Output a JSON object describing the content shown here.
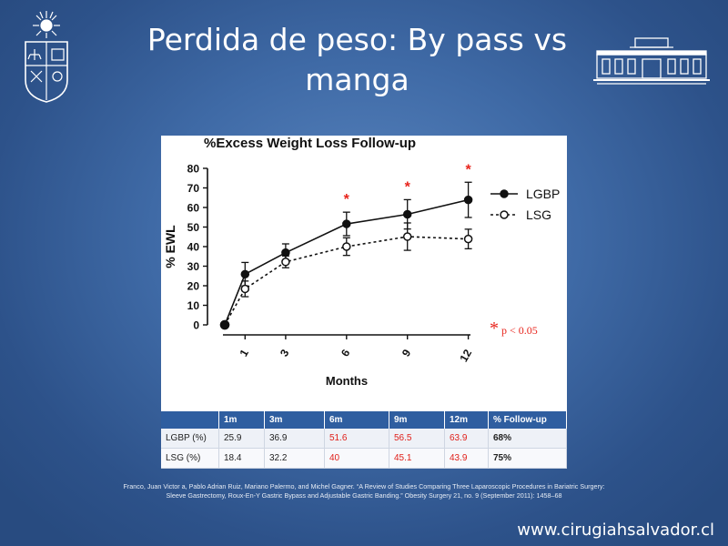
{
  "slide": {
    "title_line1": "Perdida de peso: By pass vs",
    "title_line2": "manga",
    "citation_line1": "Franco, Juan Victor a, Pablo Adrian Ruiz, Mariano Palermo, and Michel Gagner. “A Review of Studies Comparing Three Laparoscopic Procedures in Bariatric Surgery:",
    "citation_line2": "Sleeve Gastrectomy, Roux-En-Y Gastric Bypass and Adjustable Gastric Banding.” Obesity Surgery 21, no. 9 (September 2011): 1458–68",
    "website": "www.cirugiahsalvador.cl"
  },
  "chart_data": {
    "type": "line",
    "title": "%Excess Weight Loss Follow-up",
    "xlabel": "Months",
    "ylabel": "% EWL",
    "ylim": [
      0,
      80
    ],
    "yticks": [
      0,
      10,
      20,
      30,
      40,
      50,
      60,
      70,
      80
    ],
    "xticks": [
      1,
      3,
      6,
      9,
      12
    ],
    "significance_label": "p < 0.05",
    "significance_marker": "*",
    "significance_at": [
      6,
      9,
      12
    ],
    "legend_position": "right",
    "series": [
      {
        "name": "LGBP",
        "style": "solid-filled",
        "x": [
          0,
          1,
          3,
          6,
          9,
          12
        ],
        "y": [
          0,
          25.9,
          36.9,
          51.6,
          56.5,
          63.9
        ],
        "err": [
          0,
          6,
          4.5,
          6,
          7.5,
          9
        ]
      },
      {
        "name": "LSG",
        "style": "dashed-open",
        "x": [
          0,
          1,
          3,
          6,
          9,
          12
        ],
        "y": [
          0,
          18.4,
          32.2,
          40,
          45.1,
          43.9
        ],
        "err": [
          0,
          4,
          3,
          4.5,
          7,
          5
        ]
      }
    ],
    "colors": {
      "line": "#111111",
      "significance": "#e8241c"
    }
  },
  "table": {
    "headers": [
      "",
      "1m",
      "3m",
      "6m",
      "9m",
      "12m",
      "% Follow-up"
    ],
    "rows": [
      [
        "LGBP (%)",
        "25.9",
        "36.9",
        "51.6",
        "56.5",
        "63.9",
        "68%"
      ],
      [
        "LSG (%)",
        "18.4",
        "32.2",
        "40",
        "45.1",
        "43.9",
        "75%"
      ]
    ],
    "colors": {
      "header_bg": "#2f5ea0",
      "highlight": "#e0201a"
    }
  }
}
